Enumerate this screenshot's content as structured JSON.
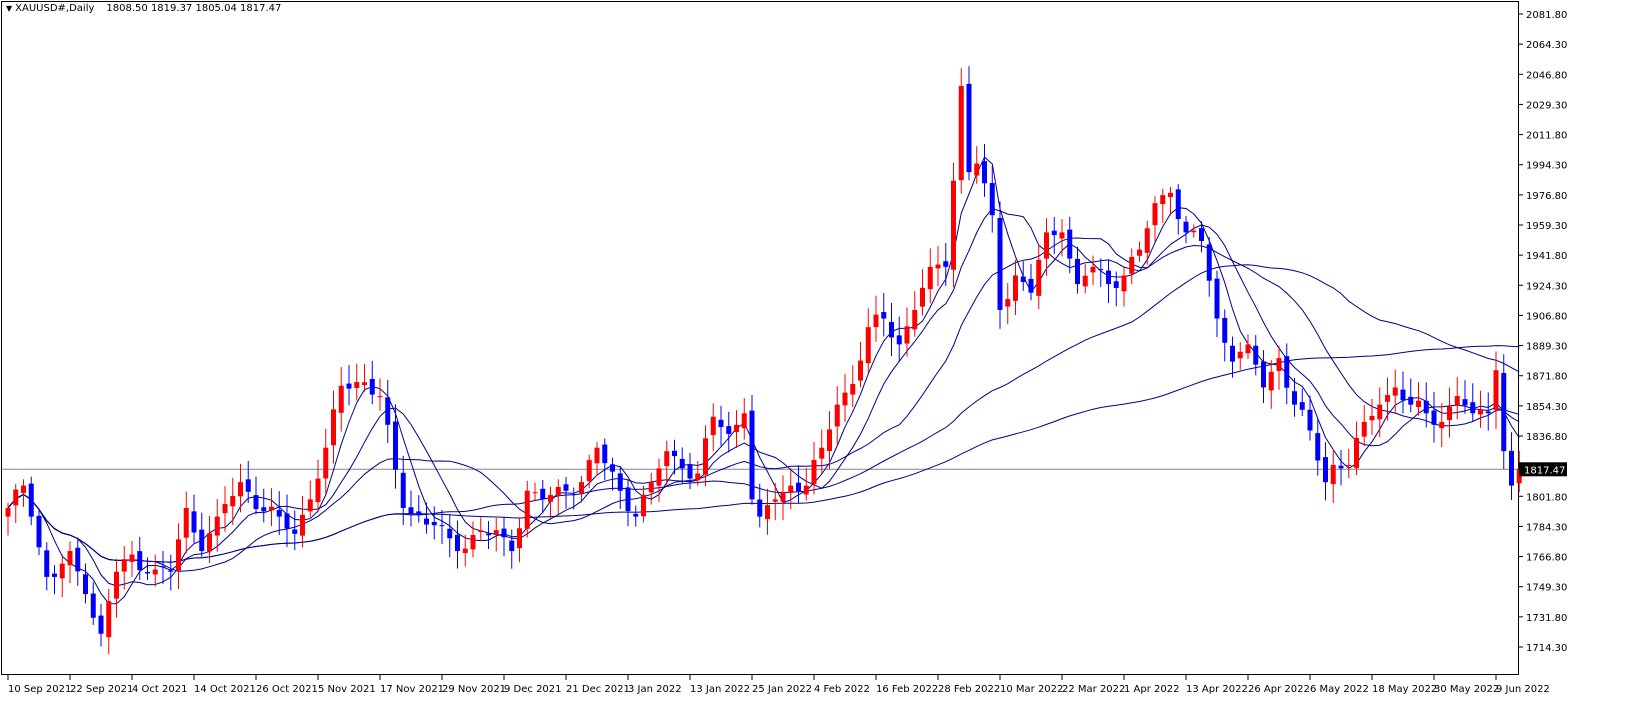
{
  "header": {
    "symbol": "XAUUSD#,Daily",
    "ohlc": "1808.50 1819.37 1805.04 1817.47"
  },
  "colors": {
    "bull": "#ff0000",
    "bear": "#0000ff",
    "ma_line": "#00008b",
    "price_line": "#778899",
    "price_label_bg": "#000000",
    "price_label_text": "#ffffff",
    "axis": "#000000"
  },
  "chart_data": {
    "type": "candlestick",
    "y_axis_ticks": [
      "2081.80",
      "2064.30",
      "2046.80",
      "2029.30",
      "2011.80",
      "1994.30",
      "1976.80",
      "1959.30",
      "1941.80",
      "1924.30",
      "1906.80",
      "1889.30",
      "1871.80",
      "1854.30",
      "1836.80",
      "1801.80",
      "1784.30",
      "1766.80",
      "1749.30",
      "1731.80",
      "1714.30"
    ],
    "ylim": [
      1712.5,
      2086
    ],
    "current_price": 1817.47,
    "current_price_label": "1817.47",
    "x_axis_labels": [
      {
        "label": "10 Sep 2021",
        "bar": 0
      },
      {
        "label": "22 Sep 2021",
        "bar": 8
      },
      {
        "label": "4 Oct 2021",
        "bar": 16
      },
      {
        "label": "14 Oct 2021",
        "bar": 24
      },
      {
        "label": "26 Oct 2021",
        "bar": 32
      },
      {
        "label": "5 Nov 2021",
        "bar": 40
      },
      {
        "label": "17 Nov 2021",
        "bar": 48
      },
      {
        "label": "29 Nov 2021",
        "bar": 56
      },
      {
        "label": "9 Dec 2021",
        "bar": 64
      },
      {
        "label": "21 Dec 2021",
        "bar": 72
      },
      {
        "label": "3 Jan 2022",
        "bar": 80
      },
      {
        "label": "13 Jan 2022",
        "bar": 88
      },
      {
        "label": "25 Jan 2022",
        "bar": 96
      },
      {
        "label": "4 Feb 2022",
        "bar": 104
      },
      {
        "label": "16 Feb 2022",
        "bar": 112
      },
      {
        "label": "28 Feb 2022",
        "bar": 120
      },
      {
        "label": "10 Mar 2022",
        "bar": 128
      },
      {
        "label": "22 Mar 2022",
        "bar": 136
      },
      {
        "label": "1 Apr 2022",
        "bar": 144
      },
      {
        "label": "13 Apr 2022",
        "bar": 152
      },
      {
        "label": "26 Apr 2022",
        "bar": 160
      },
      {
        "label": "6 May 2022",
        "bar": 168
      },
      {
        "label": "18 May 2022",
        "bar": 176
      },
      {
        "label": "30 May 2022",
        "bar": 184
      },
      {
        "label": "9 Jun 2022",
        "bar": 192
      }
    ],
    "ma_periods": [
      5,
      10,
      20,
      50,
      100
    ],
    "ohlc_points": [
      {
        "bar": 0,
        "c": 1795
      },
      {
        "bar": 2,
        "c": 1808
      },
      {
        "bar": 3,
        "c": 1790
      },
      {
        "bar": 5,
        "c": 1755
      },
      {
        "bar": 6,
        "c": 1755
      },
      {
        "bar": 8,
        "c": 1770
      },
      {
        "bar": 10,
        "c": 1745
      },
      {
        "bar": 12,
        "c": 1722
      },
      {
        "bar": 14,
        "c": 1758
      },
      {
        "bar": 16,
        "c": 1768
      },
      {
        "bar": 18,
        "c": 1757
      },
      {
        "bar": 21,
        "c": 1758
      },
      {
        "bar": 23,
        "c": 1795
      },
      {
        "bar": 25,
        "c": 1770
      },
      {
        "bar": 27,
        "c": 1790
      },
      {
        "bar": 30,
        "c": 1810
      },
      {
        "bar": 33,
        "c": 1793
      },
      {
        "bar": 35,
        "c": 1790
      },
      {
        "bar": 37,
        "c": 1780
      },
      {
        "bar": 39,
        "c": 1800
      },
      {
        "bar": 41,
        "c": 1830
      },
      {
        "bar": 43,
        "c": 1866
      },
      {
        "bar": 46,
        "c": 1868
      },
      {
        "bar": 48,
        "c": 1860
      },
      {
        "bar": 51,
        "c": 1795
      },
      {
        "bar": 55,
        "c": 1785
      },
      {
        "bar": 58,
        "c": 1770
      },
      {
        "bar": 61,
        "c": 1782
      },
      {
        "bar": 64,
        "c": 1778
      },
      {
        "bar": 65,
        "c": 1770
      },
      {
        "bar": 67,
        "c": 1805
      },
      {
        "bar": 69,
        "c": 1800
      },
      {
        "bar": 72,
        "c": 1805
      },
      {
        "bar": 74,
        "c": 1810
      },
      {
        "bar": 76,
        "c": 1830
      },
      {
        "bar": 79,
        "c": 1805
      },
      {
        "bar": 81,
        "c": 1790
      },
      {
        "bar": 83,
        "c": 1810
      },
      {
        "bar": 85,
        "c": 1828
      },
      {
        "bar": 87,
        "c": 1818
      },
      {
        "bar": 89,
        "c": 1815
      },
      {
        "bar": 91,
        "c": 1848
      },
      {
        "bar": 93,
        "c": 1838
      },
      {
        "bar": 95,
        "c": 1850
      },
      {
        "bar": 96,
        "c": 1800
      },
      {
        "bar": 97,
        "c": 1790
      },
      {
        "bar": 99,
        "c": 1800
      },
      {
        "bar": 101,
        "c": 1808
      },
      {
        "bar": 103,
        "c": 1808
      },
      {
        "bar": 105,
        "c": 1830
      },
      {
        "bar": 107,
        "c": 1855
      },
      {
        "bar": 109,
        "c": 1867
      },
      {
        "bar": 111,
        "c": 1900
      },
      {
        "bar": 113,
        "c": 1905
      },
      {
        "bar": 115,
        "c": 1890
      },
      {
        "bar": 117,
        "c": 1910
      },
      {
        "bar": 119,
        "c": 1935
      },
      {
        "bar": 121,
        "c": 1935
      },
      {
        "bar": 122,
        "c": 1985
      },
      {
        "bar": 123,
        "c": 2040
      },
      {
        "bar": 124,
        "c": 1990
      },
      {
        "bar": 125,
        "c": 1995
      },
      {
        "bar": 127,
        "c": 1965
      },
      {
        "bar": 128,
        "c": 1910
      },
      {
        "bar": 130,
        "c": 1930
      },
      {
        "bar": 132,
        "c": 1920
      },
      {
        "bar": 134,
        "c": 1955
      },
      {
        "bar": 136,
        "c": 1955
      },
      {
        "bar": 138,
        "c": 1925
      },
      {
        "bar": 140,
        "c": 1935
      },
      {
        "bar": 142,
        "c": 1925
      },
      {
        "bar": 144,
        "c": 1930
      },
      {
        "bar": 146,
        "c": 1945
      },
      {
        "bar": 148,
        "c": 1972
      },
      {
        "bar": 150,
        "c": 1978
      },
      {
        "bar": 152,
        "c": 1955
      },
      {
        "bar": 154,
        "c": 1950
      },
      {
        "bar": 156,
        "c": 1905
      },
      {
        "bar": 158,
        "c": 1880
      },
      {
        "bar": 160,
        "c": 1890
      },
      {
        "bar": 162,
        "c": 1865
      },
      {
        "bar": 164,
        "c": 1882
      },
      {
        "bar": 166,
        "c": 1855
      },
      {
        "bar": 168,
        "c": 1840
      },
      {
        "bar": 170,
        "c": 1810
      },
      {
        "bar": 171,
        "c": 1820
      },
      {
        "bar": 173,
        "c": 1820
      },
      {
        "bar": 175,
        "c": 1845
      },
      {
        "bar": 177,
        "c": 1855
      },
      {
        "bar": 179,
        "c": 1865
      },
      {
        "bar": 181,
        "c": 1855
      },
      {
        "bar": 183,
        "c": 1850
      },
      {
        "bar": 185,
        "c": 1845
      },
      {
        "bar": 187,
        "c": 1860
      },
      {
        "bar": 189,
        "c": 1850
      },
      {
        "bar": 191,
        "c": 1850
      },
      {
        "bar": 192,
        "c": 1875
      },
      {
        "bar": 193,
        "c": 1828
      },
      {
        "bar": 194,
        "c": 1808
      },
      {
        "bar": 195,
        "c": 1817.47
      }
    ]
  }
}
